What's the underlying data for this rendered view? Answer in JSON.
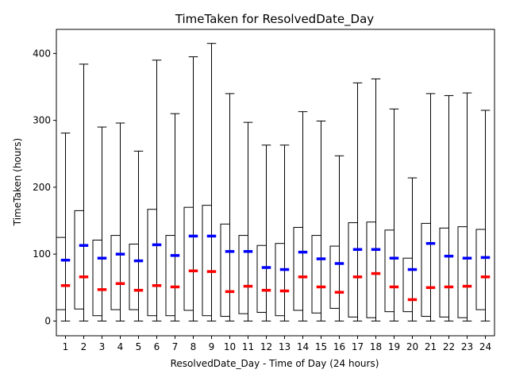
{
  "chart_data": {
    "type": "box",
    "title": "TimeTaken for ResolvedDate_Day",
    "xlabel": "ResolvedDate_Day - Time of Day (24 hours)",
    "ylabel": "TimeTaken (hours)",
    "ylim": [
      -22,
      436
    ],
    "yticks": [
      0,
      100,
      200,
      300,
      400
    ],
    "categories": [
      "1",
      "2",
      "3",
      "4",
      "5",
      "6",
      "7",
      "8",
      "9",
      "10",
      "11",
      "12",
      "13",
      "14",
      "15",
      "16",
      "17",
      "18",
      "19",
      "20",
      "21",
      "22",
      "23",
      "24"
    ],
    "legend": "none",
    "grid": false,
    "colors": {
      "median": "#ff0000",
      "mean": "#0000ff",
      "box": "#000000"
    },
    "boxes": [
      {
        "min": 0,
        "q1": 17,
        "median": 53,
        "mean": 91,
        "q3": 125,
        "max": 281
      },
      {
        "min": 0,
        "q1": 18,
        "median": 66,
        "mean": 113,
        "q3": 165,
        "max": 384
      },
      {
        "min": 0,
        "q1": 8,
        "median": 47,
        "mean": 94,
        "q3": 121,
        "max": 290
      },
      {
        "min": 0,
        "q1": 17,
        "median": 56,
        "mean": 100,
        "q3": 128,
        "max": 296
      },
      {
        "min": 0,
        "q1": 17,
        "median": 46,
        "mean": 90,
        "q3": 115,
        "max": 254
      },
      {
        "min": 0,
        "q1": 8,
        "median": 53,
        "mean": 114,
        "q3": 167,
        "max": 390
      },
      {
        "min": 0,
        "q1": 8,
        "median": 51,
        "mean": 98,
        "q3": 128,
        "max": 310
      },
      {
        "min": 0,
        "q1": 16,
        "median": 75,
        "mean": 127,
        "q3": 170,
        "max": 395
      },
      {
        "min": 0,
        "q1": 8,
        "median": 74,
        "mean": 127,
        "q3": 173,
        "max": 415
      },
      {
        "min": 0,
        "q1": 7,
        "median": 44,
        "mean": 104,
        "q3": 145,
        "max": 340
      },
      {
        "min": 0,
        "q1": 11,
        "median": 52,
        "mean": 104,
        "q3": 128,
        "max": 297
      },
      {
        "min": 0,
        "q1": 13,
        "median": 46,
        "mean": 80,
        "q3": 113,
        "max": 263
      },
      {
        "min": 0,
        "q1": 8,
        "median": 45,
        "mean": 77,
        "q3": 116,
        "max": 263
      },
      {
        "min": 0,
        "q1": 16,
        "median": 66,
        "mean": 103,
        "q3": 140,
        "max": 313
      },
      {
        "min": 0,
        "q1": 12,
        "median": 51,
        "mean": 93,
        "q3": 128,
        "max": 299
      },
      {
        "min": 0,
        "q1": 19,
        "median": 43,
        "mean": 86,
        "q3": 112,
        "max": 247
      },
      {
        "min": 0,
        "q1": 6,
        "median": 66,
        "mean": 107,
        "q3": 147,
        "max": 356
      },
      {
        "min": 0,
        "q1": 5,
        "median": 71,
        "mean": 107,
        "q3": 148,
        "max": 362
      },
      {
        "min": 0,
        "q1": 14,
        "median": 51,
        "mean": 94,
        "q3": 136,
        "max": 317
      },
      {
        "min": 0,
        "q1": 14,
        "median": 32,
        "mean": 77,
        "q3": 94,
        "max": 214
      },
      {
        "min": 0,
        "q1": 7,
        "median": 50,
        "mean": 116,
        "q3": 146,
        "max": 340
      },
      {
        "min": 0,
        "q1": 6,
        "median": 51,
        "mean": 97,
        "q3": 139,
        "max": 337
      },
      {
        "min": 0,
        "q1": 5,
        "median": 52,
        "mean": 94,
        "q3": 141,
        "max": 341
      },
      {
        "min": 0,
        "q1": 17,
        "median": 66,
        "mean": 95,
        "q3": 137,
        "max": 315
      }
    ]
  }
}
